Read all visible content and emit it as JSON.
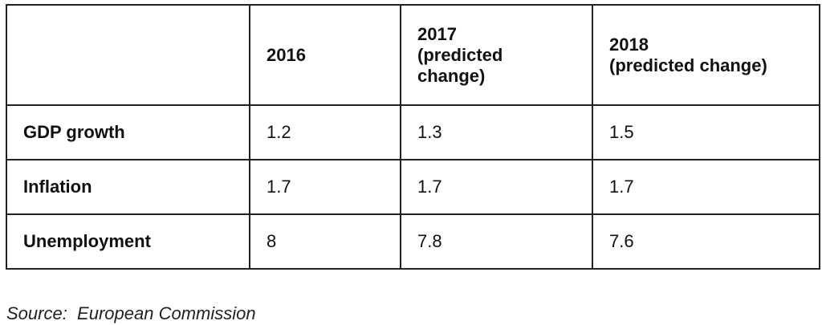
{
  "table": {
    "header": [
      "",
      "2016",
      "2017\n(predicted\nchange)",
      "2018\n(predicted change)"
    ],
    "rows": [
      [
        "GDP growth",
        1.2,
        1.3,
        1.5
      ],
      [
        "Inflation",
        1.7,
        1.7,
        1.7
      ],
      [
        "Unemployment",
        8,
        7.8,
        7.6
      ]
    ]
  },
  "source": "Source:  European Commission"
}
